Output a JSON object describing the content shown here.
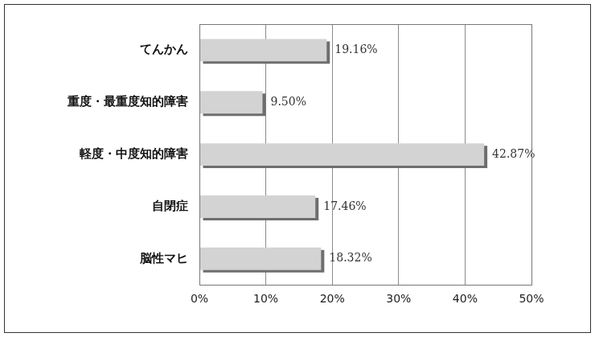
{
  "chart_data": {
    "type": "bar",
    "orientation": "horizontal",
    "categories": [
      "てんかん",
      "重度・最重度知的障害",
      "軽度・中度知的障害",
      "自閉症",
      "脳性マヒ"
    ],
    "values": [
      19.16,
      9.5,
      42.87,
      17.46,
      18.32
    ],
    "value_labels": [
      "19.16%",
      "9.50%",
      "42.87%",
      "17.46%",
      "18.32%"
    ],
    "color": "#d3d3d3",
    "xlim": [
      0,
      50
    ],
    "xticks": [
      {
        "value": 0,
        "label": "0%"
      },
      {
        "value": 10,
        "label": "10%"
      },
      {
        "value": 20,
        "label": "20%"
      },
      {
        "value": 30,
        "label": "30%"
      },
      {
        "value": 40,
        "label": "40%"
      },
      {
        "value": 50,
        "label": "50%"
      }
    ],
    "grid": true,
    "data_labels": true
  }
}
